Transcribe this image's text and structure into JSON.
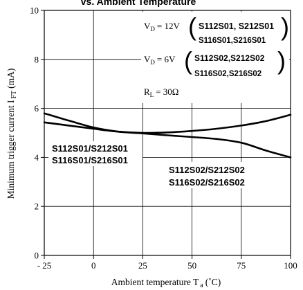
{
  "chart_data": {
    "type": "line",
    "title": "vs. Ambient Temperature",
    "xlabel_main": "Ambient temperature T",
    "xlabel_sub": "a",
    "xlabel_unit": "(˚C)",
    "ylabel_main": "Minimum trigger current I",
    "ylabel_sub": "FT",
    "ylabel_unit": "(mA)",
    "xlim": [
      -25,
      100
    ],
    "ylim": [
      0,
      10
    ],
    "x_ticks": [
      -25,
      0,
      25,
      50,
      75,
      100
    ],
    "x_tick_labels": [
      "- 25",
      "0",
      "25",
      "50",
      "75",
      "100"
    ],
    "y_ticks": [
      0,
      2,
      4,
      6,
      8,
      10
    ],
    "y_tick_labels": [
      "0",
      "2",
      "4",
      "6",
      "8",
      "10"
    ],
    "grid": true,
    "series": [
      {
        "name": "S112S01/S212S01 S116S01/S216S01",
        "x": [
          -25,
          -12.5,
          0,
          12.5,
          25,
          37.5,
          50,
          62.5,
          75,
          87.5,
          100
        ],
        "y": [
          5.43,
          5.3,
          5.17,
          5.05,
          5.0,
          5.02,
          5.08,
          5.17,
          5.3,
          5.48,
          5.74
        ]
      },
      {
        "name": "S112S02/S212S02 S116S02/S216S02",
        "x": [
          -25,
          -12.5,
          0,
          12.5,
          25,
          37.5,
          50,
          62.5,
          75,
          87.5,
          100
        ],
        "y": [
          5.8,
          5.5,
          5.22,
          5.05,
          4.98,
          4.9,
          4.83,
          4.75,
          4.6,
          4.28,
          4.0
        ]
      }
    ],
    "curve_labels": [
      [
        "S112S01/S212S01",
        "S116S01/S216S01"
      ],
      [
        "S112S02/S212S02",
        "S116S02/S216S02"
      ]
    ],
    "conditions": [
      {
        "vd": "V",
        "vd_sub": "D",
        "vd_value": "= 12V",
        "models": [
          "S112S01, S212S01",
          "S116S01,S216S01"
        ]
      },
      {
        "vd": "V",
        "vd_sub": "D",
        "vd_value": "= 6V",
        "models": [
          "S112S02,S212S02",
          "S116S02,S216S02"
        ]
      }
    ],
    "rl": {
      "label": "R",
      "sub": "L",
      "value": "= 30Ω"
    }
  }
}
